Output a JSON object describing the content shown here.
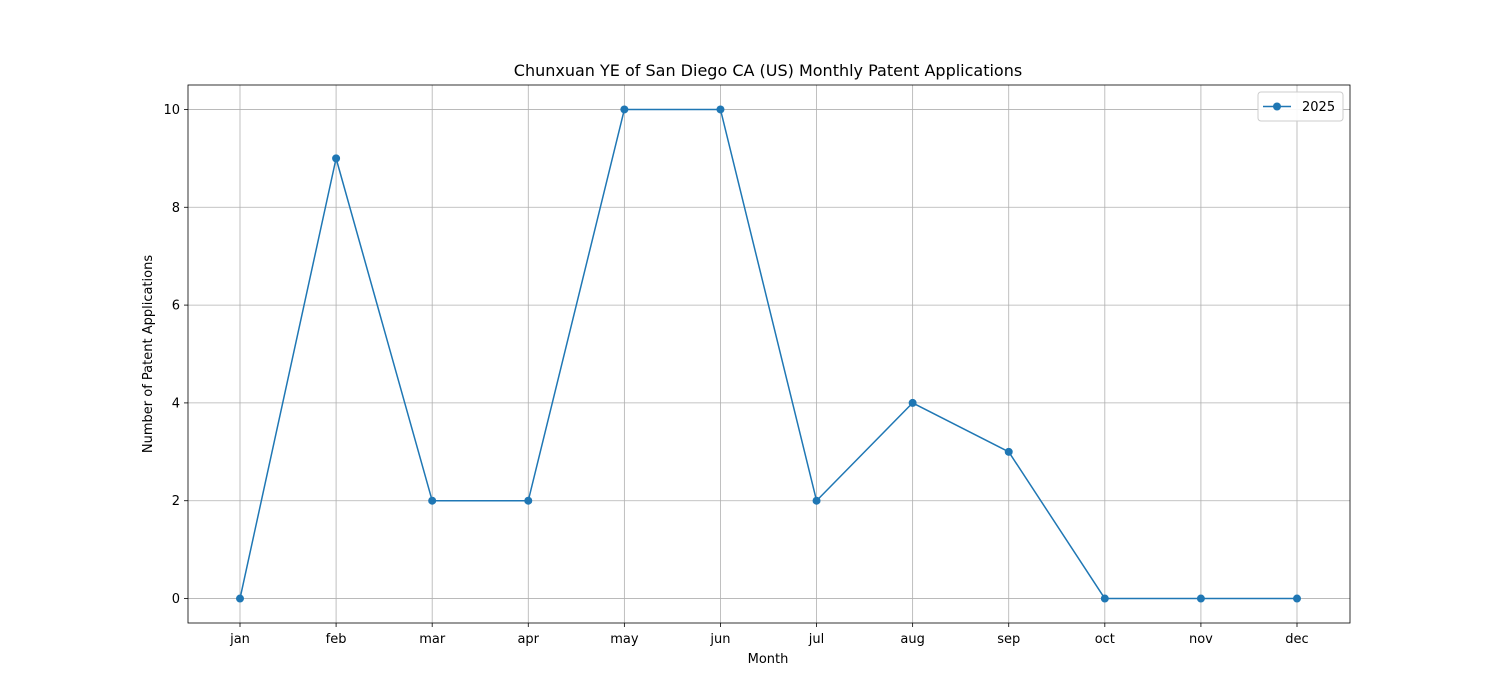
{
  "chart_data": {
    "type": "line",
    "title": "Chunxuan YE of San Diego CA (US) Monthly Patent Applications",
    "xlabel": "Month",
    "ylabel": "Number of Patent Applications",
    "categories": [
      "jan",
      "feb",
      "mar",
      "apr",
      "may",
      "jun",
      "jul",
      "aug",
      "sep",
      "oct",
      "nov",
      "dec"
    ],
    "series": [
      {
        "name": "2025",
        "values": [
          0,
          9,
          2,
          2,
          10,
          10,
          2,
          4,
          3,
          0,
          0,
          0
        ],
        "color": "#1f77b4",
        "marker": "circle"
      }
    ],
    "ylim": [
      -0.5,
      10.5
    ],
    "yticks": [
      0,
      2,
      4,
      6,
      8,
      10
    ],
    "grid": true,
    "legend_position": "top-right"
  }
}
